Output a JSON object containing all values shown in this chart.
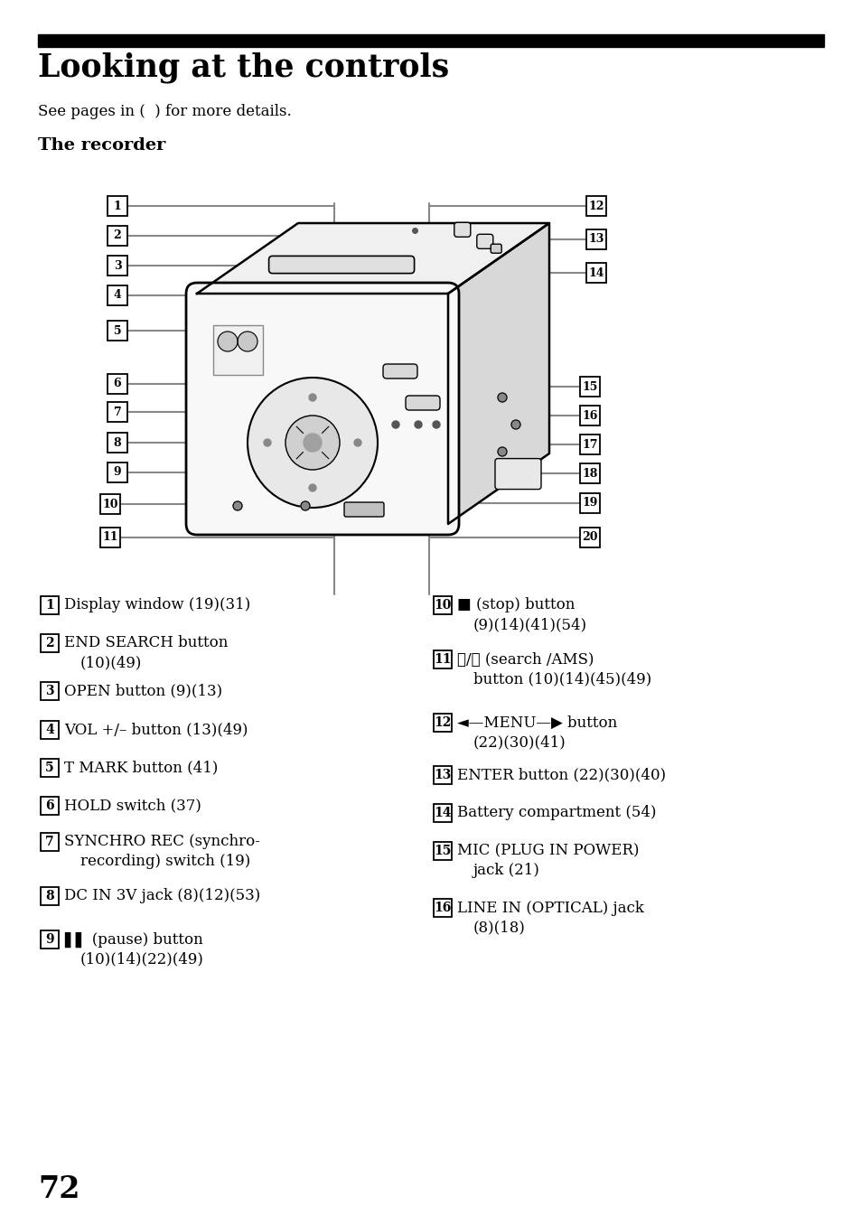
{
  "title": "Looking at the controls",
  "subtitle": "See pages in (  ) for more details.",
  "section": "The recorder",
  "page_number": "72",
  "bg_color": "#ffffff",
  "line_color": "#888888",
  "left_items": [
    {
      "num": "1",
      "text1": "Display window (19)(31)",
      "text2": ""
    },
    {
      "num": "2",
      "text1": "END SEARCH button",
      "text2": "(10)(49)"
    },
    {
      "num": "3",
      "text1": "OPEN button (9)(13)",
      "text2": ""
    },
    {
      "num": "4",
      "text1": "VOL +/– button (13)(49)",
      "text2": ""
    },
    {
      "num": "5",
      "text1": "T MARK button (41)",
      "text2": ""
    },
    {
      "num": "6",
      "text1": "HOLD switch (37)",
      "text2": ""
    },
    {
      "num": "7",
      "text1": "SYNCHRO REC (synchro-",
      "text2": "recording) switch (19)"
    },
    {
      "num": "8",
      "text1": "DC IN 3V jack (8)(12)(53)",
      "text2": ""
    },
    {
      "num": "9",
      "text1": "▌▌ (pause) button",
      "text2": "(10)(14)(22)(49)"
    }
  ],
  "right_items": [
    {
      "num": "10",
      "text1": "■ (stop) button",
      "text2": "(9)(14)(41)(54)"
    },
    {
      "num": "11",
      "text1": "⏮/⏭ (search /AMS)",
      "text2": "button (10)(14)(45)(49)"
    },
    {
      "num": "12",
      "text1": "◄—MENU—▶ button",
      "text2": "(22)(30)(41)"
    },
    {
      "num": "13",
      "text1": "ENTER button (22)(30)(40)",
      "text2": ""
    },
    {
      "num": "14",
      "text1": "Battery compartment (54)",
      "text2": ""
    },
    {
      "num": "15",
      "text1": "MIC (PLUG IN POWER)",
      "text2": "jack (21)"
    },
    {
      "num": "16",
      "text1": "LINE IN (OPTICAL) jack",
      "text2": "(8)(18)"
    }
  ]
}
